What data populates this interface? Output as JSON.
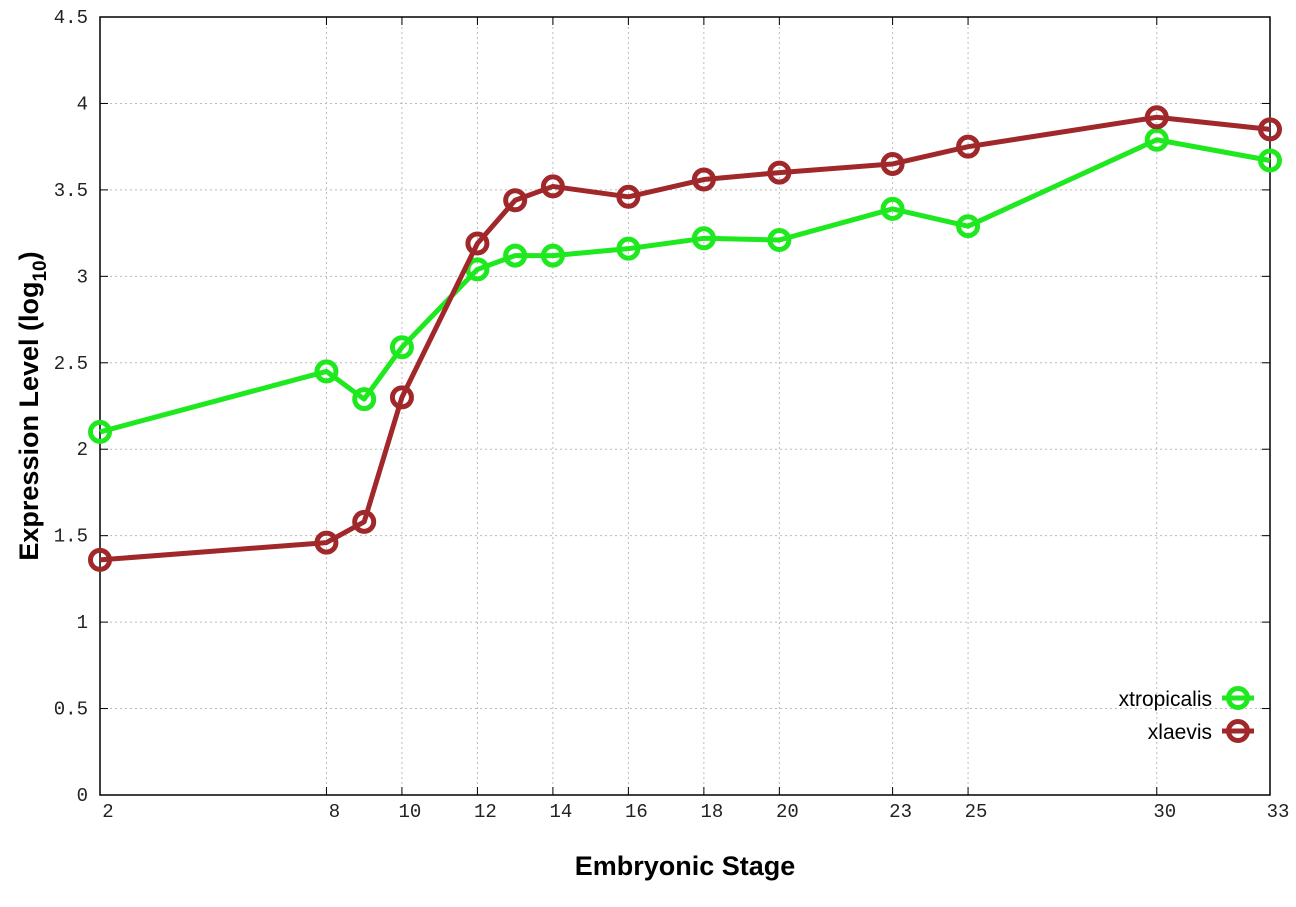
{
  "chart_data": {
    "type": "line",
    "title": "",
    "xlabel": "Embryonic Stage",
    "ylabel_main": "Expression Level (log",
    "ylabel_sub": "10",
    "ylabel_close": ")",
    "xlim": [
      2,
      33
    ],
    "ylim": [
      0,
      4.5
    ],
    "grid": true,
    "legend_position": "bottom-right",
    "x_ticks": [
      2,
      8,
      10,
      12,
      14,
      16,
      18,
      20,
      23,
      25,
      30,
      33
    ],
    "x_tick_labels": [
      "2",
      "8",
      "10",
      "12",
      "14",
      "16",
      "18",
      "20",
      "23",
      "25",
      "30",
      "33"
    ],
    "y_ticks": [
      0,
      0.5,
      1,
      1.5,
      2,
      2.5,
      3,
      3.5,
      4,
      4.5
    ],
    "y_tick_labels": [
      "0",
      "0.5",
      "1",
      "1.5",
      "2",
      "2.5",
      "3",
      "3.5",
      "4",
      "4.5"
    ],
    "x": [
      2,
      8,
      9,
      10,
      12,
      13,
      14,
      16,
      18,
      20,
      23,
      25,
      30,
      33
    ],
    "series": [
      {
        "name": "xtropicalis",
        "color": "#1ee81e",
        "values": [
          2.1,
          2.45,
          2.29,
          2.59,
          3.04,
          3.12,
          3.12,
          3.16,
          3.22,
          3.21,
          3.39,
          3.29,
          3.79,
          3.67
        ]
      },
      {
        "name": "xlaevis",
        "color": "#a0282a",
        "values": [
          1.36,
          1.46,
          1.58,
          2.3,
          3.19,
          3.44,
          3.52,
          3.46,
          3.56,
          3.6,
          3.65,
          3.75,
          3.92,
          3.85
        ]
      }
    ]
  }
}
